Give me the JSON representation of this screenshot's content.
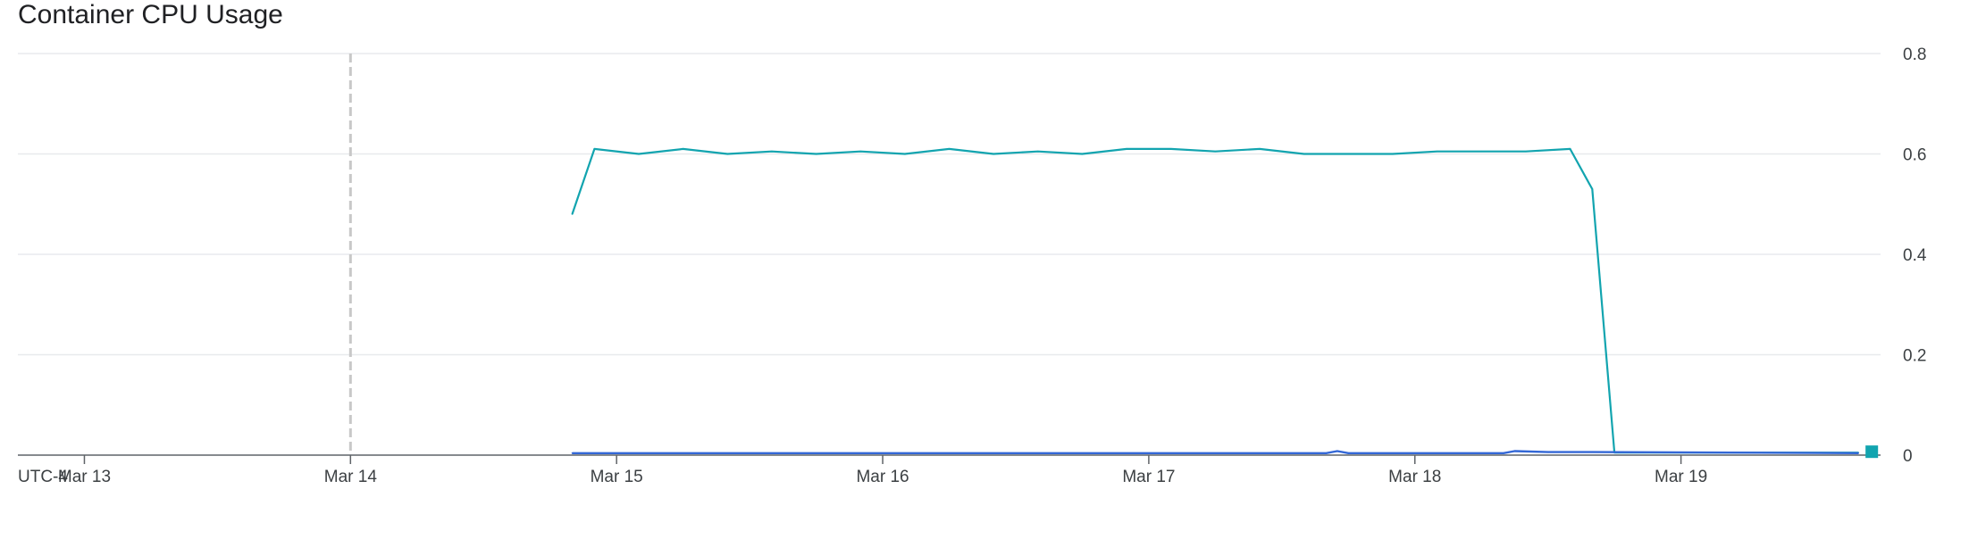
{
  "chart_data": {
    "type": "line",
    "title": "Container CPU Usage",
    "timezone_label": "UTC-4",
    "xlabel": "",
    "ylabel": "",
    "x_range": [
      "2024-03-12T18:00",
      "2024-03-19T18:00"
    ],
    "x_ticks": [
      {
        "label": "Mar 13",
        "date": "2024-03-13T00:00"
      },
      {
        "label": "Mar 14",
        "date": "2024-03-14T00:00"
      },
      {
        "label": "Mar 15",
        "date": "2024-03-15T00:00"
      },
      {
        "label": "Mar 16",
        "date": "2024-03-16T00:00"
      },
      {
        "label": "Mar 17",
        "date": "2024-03-17T00:00"
      },
      {
        "label": "Mar 18",
        "date": "2024-03-18T00:00"
      },
      {
        "label": "Mar 19",
        "date": "2024-03-19T00:00"
      }
    ],
    "ylim": [
      0,
      0.8
    ],
    "y_ticks": [
      "0",
      "0.2",
      "0.4",
      "0.6",
      "0.8"
    ],
    "y_axis_position": "right",
    "grid": true,
    "legend": "none",
    "marker_date": "2024-03-14T00:00",
    "series": [
      {
        "color": "#12a4af",
        "points": [
          [
            "2024-03-14T20:00",
            0.48
          ],
          [
            "2024-03-14T22:00",
            0.61
          ],
          [
            "2024-03-15T02:00",
            0.6
          ],
          [
            "2024-03-15T06:00",
            0.61
          ],
          [
            "2024-03-15T10:00",
            0.6
          ],
          [
            "2024-03-15T14:00",
            0.605
          ],
          [
            "2024-03-15T18:00",
            0.6
          ],
          [
            "2024-03-15T22:00",
            0.605
          ],
          [
            "2024-03-16T02:00",
            0.6
          ],
          [
            "2024-03-16T06:00",
            0.61
          ],
          [
            "2024-03-16T10:00",
            0.6
          ],
          [
            "2024-03-16T14:00",
            0.605
          ],
          [
            "2024-03-16T18:00",
            0.6
          ],
          [
            "2024-03-16T22:00",
            0.61
          ],
          [
            "2024-03-17T02:00",
            0.61
          ],
          [
            "2024-03-17T06:00",
            0.605
          ],
          [
            "2024-03-17T10:00",
            0.61
          ],
          [
            "2024-03-17T14:00",
            0.6
          ],
          [
            "2024-03-17T18:00",
            0.6
          ],
          [
            "2024-03-17T22:00",
            0.6
          ],
          [
            "2024-03-18T02:00",
            0.605
          ],
          [
            "2024-03-18T06:00",
            0.605
          ],
          [
            "2024-03-18T10:00",
            0.605
          ],
          [
            "2024-03-18T14:00",
            0.61
          ],
          [
            "2024-03-18T16:00",
            0.53
          ],
          [
            "2024-03-18T18:00",
            0.005
          ],
          [
            "2024-03-19T16:00",
            0.005
          ]
        ]
      },
      {
        "color": "#3367d6",
        "points": [
          [
            "2024-03-14T20:00",
            0.004
          ],
          [
            "2024-03-17T16:00",
            0.004
          ],
          [
            "2024-03-17T17:00",
            0.008
          ],
          [
            "2024-03-17T18:00",
            0.004
          ],
          [
            "2024-03-18T08:00",
            0.004
          ],
          [
            "2024-03-18T09:00",
            0.008
          ],
          [
            "2024-03-18T12:00",
            0.006
          ],
          [
            "2024-03-18T16:00",
            0.006
          ],
          [
            "2024-03-19T16:00",
            0.004
          ]
        ]
      }
    ]
  }
}
